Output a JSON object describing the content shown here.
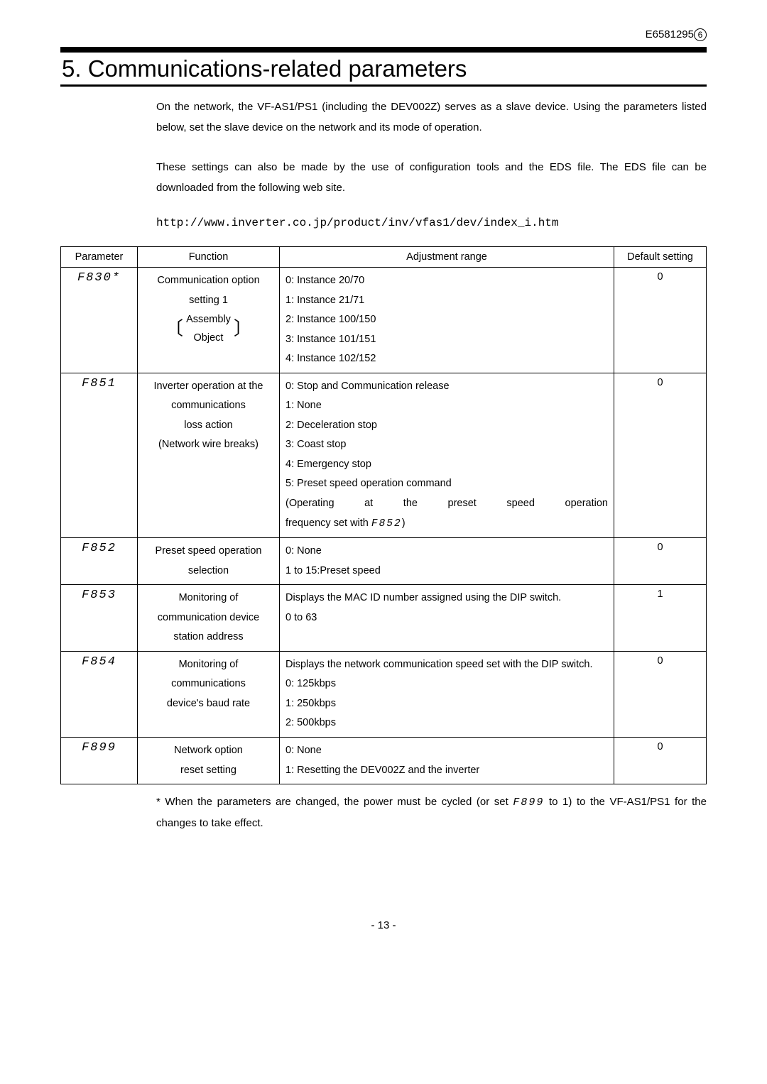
{
  "doc_number": "E6581295",
  "doc_number_circle": "6",
  "chapter_title": "5. Communications-related parameters",
  "intro_p1": "On the network, the VF-AS1/PS1 (including the DEV002Z) serves as a slave device. Using the parameters listed below, set the slave device on the network and its mode of operation.",
  "intro_p2": "These settings can also be made by the use of configuration tools and the EDS file. The EDS file can be downloaded from the following web site.",
  "url": "http://www.inverter.co.jp/product/inv/vfas1/dev/index_i.htm",
  "table": {
    "headers": {
      "parameter": "Parameter",
      "function": "Function",
      "adjustment": "Adjustment range",
      "default": "Default setting"
    },
    "rows": [
      {
        "param": "F830*",
        "func_line1": "Communication option",
        "func_line2": "setting 1",
        "func_line3": "Assembly",
        "func_line4": "Object",
        "adj_line0": "0: Instance 20/70",
        "adj_line1": "1: Instance 21/71",
        "adj_line2": "2: Instance 100/150",
        "adj_line3": "3: Instance 101/151",
        "adj_line4": "4: Instance 102/152",
        "default": "0"
      },
      {
        "param": "F851",
        "func_line1": "Inverter operation at the",
        "func_line2": "communications",
        "func_line3": "loss action",
        "func_line4": "(Network wire breaks)",
        "adj_line0": "0: Stop and Communication release",
        "adj_line1": "1: None",
        "adj_line2": "2: Deceleration stop",
        "adj_line3": "3: Coast stop",
        "adj_line4": "4: Emergency stop",
        "adj_line5": "5: Preset speed operation command",
        "adj_line6a": "(Operating at the preset speed operation",
        "adj_line6b_pre": "frequency set with ",
        "adj_line6b_seg": "F852",
        "adj_line6b_post": ")",
        "default": "0"
      },
      {
        "param": "F852",
        "func_line1": "Preset speed operation",
        "func_line2": "selection",
        "adj_line0": "0: None",
        "adj_line1": "1 to 15:Preset speed",
        "default": "0"
      },
      {
        "param": "F853",
        "func_line1": "Monitoring of",
        "func_line2": "communication device",
        "func_line3": "station address",
        "adj_line0": "Displays the MAC ID number assigned using the DIP switch.",
        "adj_line1": "0 to 63",
        "default": "1"
      },
      {
        "param": "F854",
        "func_line1": "Monitoring of",
        "func_line2": "communications",
        "func_line3": "device's baud rate",
        "adj_line0": "Displays the network communication speed set with the DIP switch.",
        "adj_line1": "0: 125kbps",
        "adj_line2": "1: 250kbps",
        "adj_line3": "2: 500kbps",
        "default": "0"
      },
      {
        "param": "F899",
        "func_line1": "Network option",
        "func_line2": "reset setting",
        "adj_line0": "0: None",
        "adj_line1": "1: Resetting the DEV002Z and the inverter",
        "default": "0"
      }
    ]
  },
  "footnote_pre": "* When the parameters are changed, the power must be cycled (or set ",
  "footnote_seg": "F899",
  "footnote_post": " to 1) to the VF-AS1/PS1 for the changes to take effect.",
  "page_number": "- 13 -"
}
